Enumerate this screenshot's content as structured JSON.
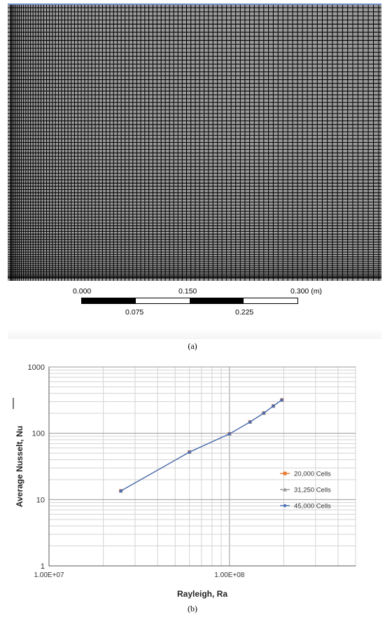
{
  "figure_a": {
    "scale_labels_top": [
      "0.000",
      "0.150",
      "0.300 (m)"
    ],
    "scale_labels_bottom": [
      "0.075",
      "0.225"
    ],
    "caption": "(a)"
  },
  "figure_b": {
    "caption": "(b)"
  },
  "chart_data": {
    "type": "line",
    "xlabel": "Rayleigh, Ra",
    "ylabel": "Average Nusselt, Nu",
    "x_scale": "log",
    "y_scale": "log",
    "xlim": [
      10000000,
      500000000
    ],
    "ylim": [
      1,
      1000
    ],
    "x_tick_labels": [
      "1.00E+07",
      "1.00E+08"
    ],
    "y_tick_labels": [
      "1",
      "10",
      "100",
      "1000"
    ],
    "grid": true,
    "legend_position": "right",
    "series": [
      {
        "name": "20,000 Cells",
        "color": "#e8792f",
        "marker": "square",
        "x": [
          25000000,
          60000000,
          100000000,
          130000000,
          155000000,
          175000000,
          195000000
        ],
        "y": [
          13.5,
          52,
          98,
          148,
          202,
          258,
          318
        ]
      },
      {
        "name": "31,250 Cells",
        "color": "#9a9a9a",
        "marker": "triangle",
        "x": [
          25000000,
          60000000,
          100000000,
          130000000,
          155000000,
          175000000,
          195000000
        ],
        "y": [
          13.5,
          52,
          98,
          148,
          202,
          258,
          318
        ]
      },
      {
        "name": "45,000 Cells",
        "color": "#4a6fb5",
        "marker": "circle",
        "x": [
          25000000,
          60000000,
          100000000,
          130000000,
          155000000,
          175000000,
          195000000
        ],
        "y": [
          13.5,
          52,
          98,
          148,
          202,
          258,
          318
        ]
      }
    ]
  }
}
